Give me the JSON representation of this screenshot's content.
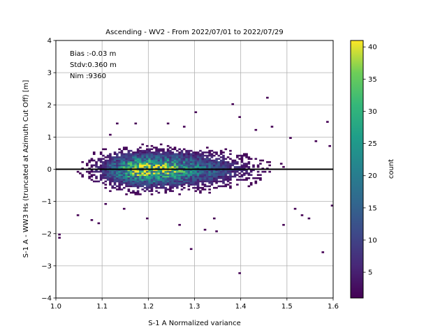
{
  "chart_data": {
    "type": "heatmap",
    "title": "Ascending - WV2 - From 2022/07/01 to 2022/07/29",
    "xlabel": "S-1 A Normalized variance",
    "ylabel": "S-1 A - WW3 Hs (truncated at Azimuth Cut Off) [m]",
    "xlim": [
      1.0,
      1.6
    ],
    "ylim": [
      -4,
      4
    ],
    "xticks": [
      "1.0",
      "1.1",
      "1.2",
      "1.3",
      "1.4",
      "1.5",
      "1.6"
    ],
    "yticks": [
      "−4",
      "−3",
      "−2",
      "−1",
      "0",
      "1",
      "2",
      "3",
      "4"
    ],
    "grid": true,
    "stats": {
      "bias": "Bias :-0.03 m",
      "stdv": "Stdv:0.360 m",
      "nim": "Nim :9360"
    },
    "reference_line": {
      "y": 0,
      "color": "#000000"
    },
    "colorbar": {
      "label": "count",
      "colormap": "viridis",
      "range": [
        1,
        41
      ],
      "ticks": [
        "5",
        "10",
        "15",
        "20",
        "25",
        "30",
        "35",
        "40"
      ]
    },
    "density_model": {
      "center_x": 1.19,
      "center_y": -0.03,
      "peak_count": 41,
      "bin_width_x": 0.005,
      "bin_height_y": 0.05
    },
    "outliers": [
      {
        "x": 1.005,
        "y": -2.05
      },
      {
        "x": 1.005,
        "y": -2.15
      },
      {
        "x": 1.045,
        "y": -1.45
      },
      {
        "x": 1.075,
        "y": -1.6
      },
      {
        "x": 1.09,
        "y": -1.7
      },
      {
        "x": 1.13,
        "y": 1.4
      },
      {
        "x": 1.17,
        "y": 1.4
      },
      {
        "x": 1.195,
        "y": -1.55
      },
      {
        "x": 1.24,
        "y": 1.4
      },
      {
        "x": 1.265,
        "y": -1.75
      },
      {
        "x": 1.29,
        "y": -2.5
      },
      {
        "x": 1.3,
        "y": 1.75
      },
      {
        "x": 1.32,
        "y": -1.9
      },
      {
        "x": 1.345,
        "y": -1.95
      },
      {
        "x": 1.38,
        "y": 2.0
      },
      {
        "x": 1.395,
        "y": -3.25
      },
      {
        "x": 1.455,
        "y": 2.2
      },
      {
        "x": 1.395,
        "y": 1.6
      },
      {
        "x": 1.43,
        "y": 1.2
      },
      {
        "x": 1.49,
        "y": -1.75
      },
      {
        "x": 1.505,
        "y": 0.95
      },
      {
        "x": 1.545,
        "y": -1.55
      },
      {
        "x": 1.575,
        "y": -2.6
      },
      {
        "x": 1.585,
        "y": 1.45
      },
      {
        "x": 1.595,
        "y": -1.15
      },
      {
        "x": 1.59,
        "y": 0.7
      },
      {
        "x": 1.515,
        "y": -1.25
      },
      {
        "x": 1.465,
        "y": 1.3
      },
      {
        "x": 1.34,
        "y": -1.55
      },
      {
        "x": 1.105,
        "y": -1.1
      },
      {
        "x": 1.115,
        "y": 1.05
      },
      {
        "x": 1.145,
        "y": -1.25
      },
      {
        "x": 1.275,
        "y": 1.3
      },
      {
        "x": 1.53,
        "y": -1.45
      },
      {
        "x": 1.56,
        "y": 0.85
      }
    ]
  }
}
